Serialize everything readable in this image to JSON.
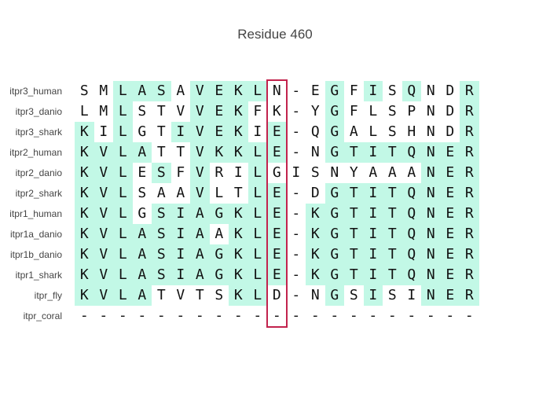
{
  "title": "Residue 460",
  "colors": {
    "conserved_bg": "#c2f8e6",
    "highlight_border": "#c2234d",
    "text": "#111111",
    "label": "#444444"
  },
  "highlight_column": 10,
  "rows": [
    {
      "label": "itpr3_human",
      "seq": "SMLASAVEKLN-EGFISQNDR",
      "shaded": [
        0,
        0,
        1,
        1,
        1,
        0,
        1,
        1,
        1,
        1,
        0,
        0,
        0,
        1,
        0,
        1,
        0,
        1,
        0,
        0,
        1
      ]
    },
    {
      "label": "itpr3_danio",
      "seq": "LMLSTVVEKFK-YGFLSPNDR",
      "shaded": [
        0,
        0,
        1,
        0,
        0,
        0,
        1,
        1,
        1,
        0,
        0,
        0,
        0,
        1,
        0,
        0,
        0,
        0,
        0,
        0,
        1
      ]
    },
    {
      "label": "itpr3_shark",
      "seq": "KILGTIVEKIE-QGALSHNDR",
      "shaded": [
        1,
        0,
        1,
        0,
        0,
        1,
        1,
        1,
        1,
        0,
        1,
        0,
        0,
        1,
        0,
        0,
        0,
        0,
        0,
        0,
        1
      ]
    },
    {
      "label": "itpr2_human",
      "seq": "KVLATTVKKLE-NGTITQNER",
      "shaded": [
        1,
        1,
        1,
        1,
        0,
        0,
        1,
        1,
        1,
        1,
        1,
        0,
        0,
        1,
        1,
        1,
        1,
        1,
        1,
        1,
        1
      ]
    },
    {
      "label": "itpr2_danio",
      "seq": "KVLESFVRILGISNYAAANER",
      "shaded": [
        1,
        1,
        1,
        0,
        1,
        0,
        1,
        0,
        0,
        1,
        0,
        0,
        0,
        0,
        0,
        0,
        0,
        0,
        1,
        1,
        1
      ]
    },
    {
      "label": "itpr2_shark",
      "seq": "KVLSAAVLTLE-DGTITQNER",
      "shaded": [
        1,
        1,
        1,
        0,
        0,
        0,
        1,
        0,
        0,
        1,
        1,
        0,
        0,
        1,
        1,
        1,
        1,
        1,
        1,
        1,
        1
      ]
    },
    {
      "label": "itpr1_human",
      "seq": "KVLGSIAGKLE-KGTITQNER",
      "shaded": [
        1,
        1,
        1,
        0,
        1,
        1,
        1,
        1,
        1,
        1,
        1,
        0,
        1,
        1,
        1,
        1,
        1,
        1,
        1,
        1,
        1
      ]
    },
    {
      "label": "itpr1a_danio",
      "seq": "KVLASIAAKLE-KGTITQNER",
      "shaded": [
        1,
        1,
        1,
        1,
        1,
        1,
        1,
        0,
        1,
        1,
        1,
        0,
        1,
        1,
        1,
        1,
        1,
        1,
        1,
        1,
        1
      ]
    },
    {
      "label": "itpr1b_danio",
      "seq": "KVLASIAGKLE-KGTITQNER",
      "shaded": [
        1,
        1,
        1,
        1,
        1,
        1,
        1,
        1,
        1,
        1,
        1,
        0,
        1,
        1,
        1,
        1,
        1,
        1,
        1,
        1,
        1
      ]
    },
    {
      "label": "itpr1_shark",
      "seq": "KVLASIAGKLE-KGTITQNER",
      "shaded": [
        1,
        1,
        1,
        1,
        1,
        1,
        1,
        1,
        1,
        1,
        1,
        0,
        1,
        1,
        1,
        1,
        1,
        1,
        1,
        1,
        1
      ]
    },
    {
      "label": "itpr_fly",
      "seq": "KVLATVTSKLD-NGSISINER",
      "shaded": [
        1,
        1,
        1,
        1,
        0,
        0,
        0,
        0,
        1,
        1,
        0,
        0,
        0,
        1,
        0,
        1,
        0,
        0,
        1,
        1,
        1
      ]
    },
    {
      "label": "itpr_coral",
      "seq": "---------------------",
      "shaded": [
        0,
        0,
        0,
        0,
        0,
        0,
        0,
        0,
        0,
        0,
        0,
        0,
        0,
        0,
        0,
        0,
        0,
        0,
        0,
        0,
        0
      ]
    }
  ]
}
